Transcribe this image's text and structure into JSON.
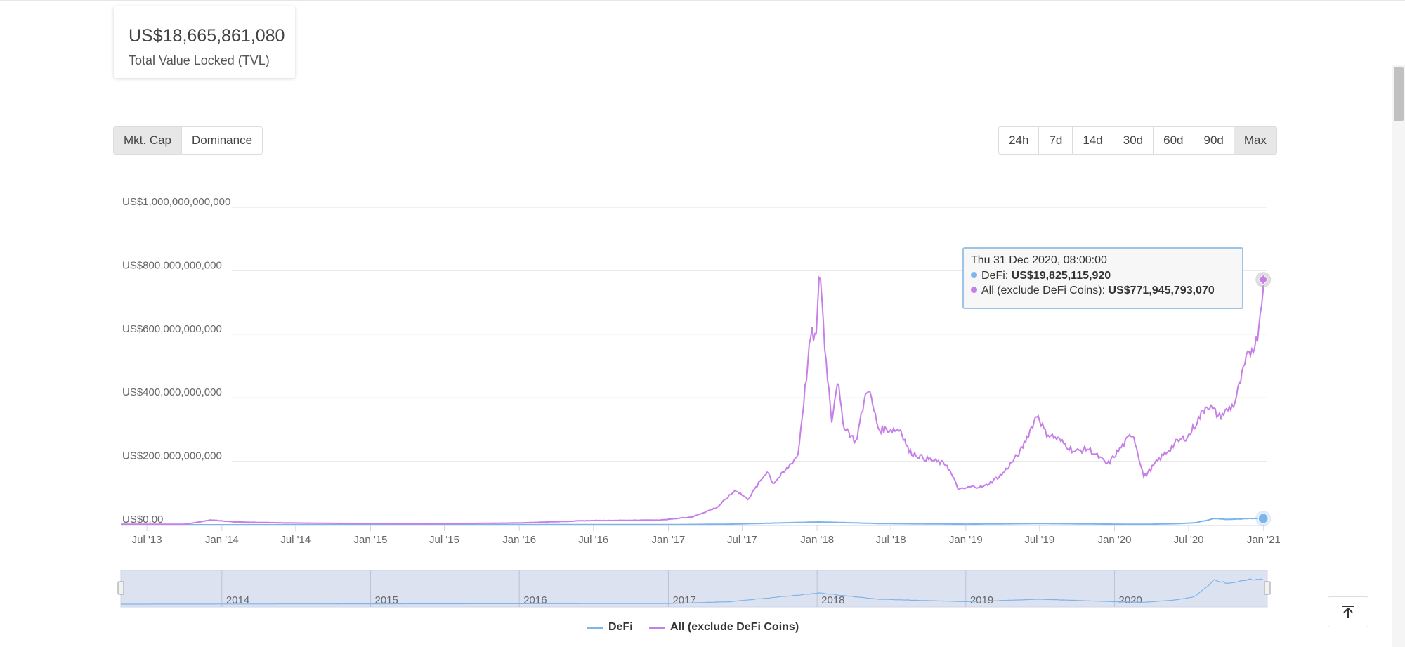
{
  "tvl": {
    "value": "US$18,665,861,080",
    "label": "Total Value Locked (TVL)"
  },
  "type_buttons": [
    {
      "label": "Mkt. Cap",
      "active": true
    },
    {
      "label": "Dominance",
      "active": false
    }
  ],
  "range_buttons": [
    {
      "label": "24h",
      "active": false
    },
    {
      "label": "7d",
      "active": false
    },
    {
      "label": "14d",
      "active": false
    },
    {
      "label": "30d",
      "active": false
    },
    {
      "label": "60d",
      "active": false
    },
    {
      "label": "90d",
      "active": false
    },
    {
      "label": "Max",
      "active": true
    }
  ],
  "tooltip": {
    "date": "Thu 31 Dec 2020, 08:00:00",
    "defi_label": "DeFi: ",
    "defi_value": "US$19,825,115,920",
    "all_label": "All (exclude DeFi Coins): ",
    "all_value": "US$771,945,793,070"
  },
  "legend": {
    "defi": "DeFi",
    "all": "All (exclude DeFi Coins)"
  },
  "navigator": {
    "year_labels": [
      "2014",
      "2015",
      "2016",
      "2017",
      "2018",
      "2019",
      "2020"
    ]
  },
  "colors": {
    "defi": "#7cb5ec",
    "all": "#c67fe8",
    "navigator_fill": "#dde2f0",
    "grid": "#e6e6e6"
  },
  "icons": {
    "scroll_top": "arrow-up-to-line-icon"
  },
  "chart_data": {
    "type": "line",
    "title": "",
    "xlabel": "",
    "ylabel": "",
    "y_tick_labels": [
      "US$0.00",
      "US$200,000,000,000",
      "US$400,000,000,000",
      "US$600,000,000,000",
      "US$800,000,000,000",
      "US$1,000,000,000,000"
    ],
    "y_ticks": [
      0,
      200000000000,
      400000000000,
      600000000000,
      800000000000,
      1000000000000
    ],
    "ylim": [
      0,
      1000000000000
    ],
    "x_tick_labels": [
      "Jul '13",
      "Jan '14",
      "Jul '14",
      "Jan '15",
      "Jul '15",
      "Jan '16",
      "Jul '16",
      "Jan '17",
      "Jul '17",
      "Jan '18",
      "Jul '18",
      "Jan '19",
      "Jul '19",
      "Jan '20",
      "Jul '20",
      "Jan '21"
    ],
    "x_ticks": [
      "2013-07-01",
      "2014-01-01",
      "2014-07-01",
      "2015-01-01",
      "2015-07-01",
      "2016-01-01",
      "2016-07-01",
      "2017-01-01",
      "2017-07-01",
      "2018-01-01",
      "2018-07-01",
      "2019-01-01",
      "2019-07-01",
      "2020-01-01",
      "2020-07-01",
      "2021-01-01"
    ],
    "xlim": [
      "2013-04-28",
      "2021-01-10"
    ],
    "grid": true,
    "legend_position": "bottom-center",
    "series": [
      {
        "name": "DeFi",
        "x": [
          "2013-04-28",
          "2017-01-01",
          "2017-06-01",
          "2018-01-07",
          "2018-06-01",
          "2019-01-01",
          "2019-07-01",
          "2020-01-01",
          "2020-03-15",
          "2020-06-01",
          "2020-07-15",
          "2020-08-15",
          "2020-09-01",
          "2020-10-01",
          "2020-11-01",
          "2020-12-01",
          "2020-12-31"
        ],
        "values": [
          0,
          500000000,
          2000000000,
          9000000000,
          4000000000,
          2000000000,
          4000000000,
          2000000000,
          1500000000,
          3500000000,
          6000000000,
          14000000000,
          20000000000,
          17000000000,
          18000000000,
          20000000000,
          19825115920
        ]
      },
      {
        "name": "All (exclude DeFi Coins)",
        "x": [
          "2013-04-28",
          "2013-10-01",
          "2013-12-05",
          "2014-02-01",
          "2014-06-01",
          "2014-12-01",
          "2015-06-01",
          "2016-01-01",
          "2016-06-15",
          "2016-12-15",
          "2017-03-01",
          "2017-05-01",
          "2017-06-15",
          "2017-07-15",
          "2017-09-01",
          "2017-09-15",
          "2017-10-15",
          "2017-11-15",
          "2017-12-17",
          "2017-12-31",
          "2018-01-07",
          "2018-01-20",
          "2018-02-06",
          "2018-02-20",
          "2018-03-05",
          "2018-04-06",
          "2018-05-05",
          "2018-06-01",
          "2018-07-25",
          "2018-08-15",
          "2018-09-20",
          "2018-11-15",
          "2018-12-15",
          "2019-01-15",
          "2019-02-15",
          "2019-04-01",
          "2019-05-15",
          "2019-06-26",
          "2019-07-15",
          "2019-08-15",
          "2019-09-25",
          "2019-10-28",
          "2019-12-15",
          "2020-02-15",
          "2020-03-13",
          "2020-04-15",
          "2020-06-01",
          "2020-07-01",
          "2020-08-15",
          "2020-09-15",
          "2020-10-21",
          "2020-11-20",
          "2020-12-05",
          "2020-12-15",
          "2020-12-25",
          "2020-12-31"
        ],
        "values": [
          1500000000,
          1500000000,
          15000000000,
          9000000000,
          6000000000,
          4000000000,
          3000000000,
          6000000000,
          13000000000,
          15000000000,
          25000000000,
          55000000000,
          110000000000,
          80000000000,
          170000000000,
          130000000000,
          170000000000,
          220000000000,
          600000000000,
          590000000000,
          830000000000,
          560000000000,
          330000000000,
          460000000000,
          320000000000,
          260000000000,
          440000000000,
          300000000000,
          300000000000,
          230000000000,
          210000000000,
          190000000000,
          110000000000,
          120000000000,
          120000000000,
          160000000000,
          230000000000,
          350000000000,
          290000000000,
          270000000000,
          230000000000,
          240000000000,
          190000000000,
          290000000000,
          150000000000,
          200000000000,
          260000000000,
          280000000000,
          380000000000,
          340000000000,
          380000000000,
          520000000000,
          560000000000,
          580000000000,
          680000000000,
          771945793070
        ]
      }
    ]
  }
}
